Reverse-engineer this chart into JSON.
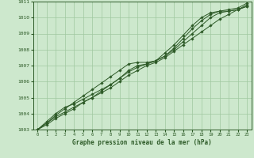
{
  "xlabel": "Graphe pression niveau de la mer (hPa)",
  "x_ticks": [
    0,
    1,
    2,
    3,
    4,
    5,
    6,
    7,
    8,
    9,
    10,
    11,
    12,
    13,
    14,
    15,
    16,
    17,
    18,
    19,
    20,
    21,
    22,
    23
  ],
  "xlim": [
    -0.5,
    23.5
  ],
  "ylim": [
    1003,
    1011
  ],
  "y_ticks": [
    1003,
    1004,
    1005,
    1006,
    1007,
    1008,
    1009,
    1010,
    1011
  ],
  "bg_color": "#cde8cd",
  "grid_color": "#a0c8a0",
  "line_color": "#2d5a27",
  "lines": [
    [
      1003.0,
      1003.4,
      1003.8,
      1004.1,
      1004.4,
      1004.7,
      1005.0,
      1005.3,
      1005.6,
      1006.0,
      1006.4,
      1006.7,
      1007.0,
      1007.2,
      1007.5,
      1007.9,
      1008.3,
      1008.7,
      1009.1,
      1009.5,
      1009.9,
      1010.2,
      1010.5,
      1010.8
    ],
    [
      1003.0,
      1003.3,
      1003.7,
      1004.0,
      1004.3,
      1004.7,
      1005.0,
      1005.4,
      1005.8,
      1006.2,
      1006.6,
      1006.9,
      1007.1,
      1007.3,
      1007.6,
      1008.0,
      1008.5,
      1009.0,
      1009.5,
      1010.0,
      1010.3,
      1010.4,
      1010.5,
      1010.7
    ],
    [
      1003.0,
      1003.4,
      1003.9,
      1004.3,
      1004.7,
      1005.1,
      1005.5,
      1005.9,
      1006.3,
      1006.7,
      1007.1,
      1007.2,
      1007.2,
      1007.3,
      1007.6,
      1008.1,
      1008.7,
      1009.3,
      1009.8,
      1010.2,
      1010.4,
      1010.5,
      1010.6,
      1010.9
    ],
    [
      1003.0,
      1003.5,
      1004.0,
      1004.4,
      1004.6,
      1004.9,
      1005.2,
      1005.5,
      1005.8,
      1006.2,
      1006.7,
      1007.0,
      1007.1,
      1007.3,
      1007.8,
      1008.3,
      1008.9,
      1009.5,
      1010.0,
      1010.3,
      1010.4,
      1010.4,
      1010.5,
      1010.7
    ]
  ]
}
